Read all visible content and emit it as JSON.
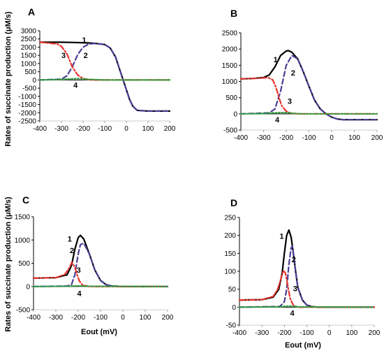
{
  "figure": {
    "ylabel": "Rates of succinate production (μM/s)",
    "xlabel_C": "Eout   (mV)",
    "xlabel_D": "Eout  (mV)"
  },
  "chart_data": [
    {
      "panel": "A",
      "type": "line",
      "title": "A",
      "xlim": [
        -400,
        200
      ],
      "xticks": [
        -400,
        -300,
        -200,
        -100,
        0,
        100,
        200
      ],
      "ylim": [
        -2500,
        3000
      ],
      "yticks": [
        -2500,
        -2000,
        -1500,
        -1000,
        -500,
        0,
        500,
        1000,
        1500,
        2000,
        2500,
        3000
      ],
      "series": [
        {
          "name": "1",
          "color": "#000000",
          "dash": "solid",
          "x": [
            -400,
            -300,
            -250,
            -200,
            -150,
            -100,
            -75,
            -50,
            -30,
            -15,
            0,
            15,
            30,
            50,
            100,
            200
          ],
          "y": [
            2300,
            2300,
            2290,
            2270,
            2240,
            2160,
            1950,
            1400,
            600,
            0,
            -600,
            -1200,
            -1600,
            -1850,
            -1900,
            -1900
          ]
        },
        {
          "name": "2",
          "color": "#4a3f95",
          "dash": "dashed",
          "x": [
            -400,
            -300,
            -275,
            -250,
            -225,
            -200,
            -175,
            -150,
            -100,
            -75,
            -50,
            -30,
            -15,
            0,
            15,
            30,
            50,
            100,
            200
          ],
          "y": [
            0,
            50,
            250,
            800,
            1550,
            2000,
            2180,
            2230,
            2160,
            1950,
            1400,
            600,
            0,
            -600,
            -1200,
            -1600,
            -1850,
            -1900,
            -1900
          ]
        },
        {
          "name": "3",
          "color": "#e8312a",
          "dash": "dashdot",
          "x": [
            -400,
            -320,
            -300,
            -275,
            -250,
            -225,
            -200,
            -175,
            -150,
            -100,
            200
          ],
          "y": [
            2300,
            2200,
            2050,
            1600,
            800,
            300,
            90,
            20,
            0,
            0,
            0
          ]
        },
        {
          "name": "4",
          "color": "#2e9e3e",
          "dash": "dotted",
          "x": [
            -400,
            -300,
            -250,
            -220,
            -180,
            -100,
            200
          ],
          "y": [
            0,
            30,
            70,
            80,
            40,
            0,
            0
          ]
        }
      ],
      "series_labels": [
        {
          "text": "1",
          "x": -195,
          "y": 2450
        },
        {
          "text": "2",
          "x": -188,
          "y": 1500
        },
        {
          "text": "3",
          "x": -290,
          "y": 1500
        },
        {
          "text": "4",
          "x": -235,
          "y": -300
        }
      ]
    },
    {
      "panel": "B",
      "type": "line",
      "title": "B",
      "xlim": [
        -400,
        200
      ],
      "xticks": [
        -400,
        -300,
        -200,
        -100,
        0,
        100,
        200
      ],
      "ylim": [
        -500,
        2500
      ],
      "yticks": [
        -500,
        0,
        500,
        1000,
        1500,
        2000,
        2500
      ],
      "series": [
        {
          "name": "1",
          "color": "#000000",
          "dash": "solid",
          "x": [
            -400,
            -350,
            -300,
            -275,
            -250,
            -225,
            -200,
            -190,
            -175,
            -150,
            -125,
            -100,
            -75,
            -50,
            -25,
            0,
            25,
            50,
            100,
            200
          ],
          "y": [
            1080,
            1090,
            1120,
            1200,
            1450,
            1800,
            1940,
            1950,
            1900,
            1700,
            1300,
            850,
            420,
            150,
            0,
            -100,
            -160,
            -180,
            -180,
            -180
          ]
        },
        {
          "name": "2",
          "color": "#4a3f95",
          "dash": "dashed",
          "x": [
            -400,
            -275,
            -250,
            -225,
            -200,
            -175,
            -150,
            -125,
            -100,
            -75,
            -50,
            -25,
            0,
            25,
            50,
            100,
            200
          ],
          "y": [
            0,
            30,
            150,
            700,
            1500,
            1800,
            1700,
            1300,
            850,
            420,
            150,
            0,
            -100,
            -160,
            -180,
            -180,
            -180
          ]
        },
        {
          "name": "3",
          "color": "#e8312a",
          "dash": "dashdot",
          "x": [
            -400,
            -320,
            -280,
            -260,
            -250,
            -240,
            -230,
            -220,
            -200,
            -180,
            -150,
            200
          ],
          "y": [
            1080,
            1100,
            1120,
            1050,
            900,
            700,
            450,
            250,
            80,
            20,
            0,
            0
          ]
        },
        {
          "name": "4",
          "color": "#2e9e3e",
          "dash": "dotted",
          "x": [
            -400,
            -300,
            -250,
            -220,
            -200,
            -170,
            -130,
            200
          ],
          "y": [
            0,
            10,
            30,
            40,
            35,
            15,
            0,
            0
          ]
        }
      ],
      "series_labels": [
        {
          "text": "1",
          "x": -247,
          "y": 1680
        },
        {
          "text": "2",
          "x": -170,
          "y": 1270
        },
        {
          "text": "3",
          "x": -185,
          "y": 400
        },
        {
          "text": "4",
          "x": -240,
          "y": -180
        }
      ]
    },
    {
      "panel": "C",
      "type": "line",
      "title": "C",
      "xlim": [
        -400,
        200
      ],
      "xticks": [
        -400,
        -300,
        -200,
        -100,
        0,
        100,
        200
      ],
      "ylim": [
        -500,
        1500
      ],
      "yticks": [
        -500,
        0,
        500,
        1000,
        1500
      ],
      "series": [
        {
          "name": "1",
          "color": "#000000",
          "dash": "solid",
          "x": [
            -400,
            -300,
            -250,
            -230,
            -215,
            -200,
            -190,
            -175,
            -150,
            -125,
            -100,
            -75,
            -50,
            0,
            200
          ],
          "y": [
            180,
            190,
            250,
            450,
            800,
            1050,
            1100,
            1020,
            700,
            350,
            130,
            40,
            10,
            0,
            0
          ]
        },
        {
          "name": "2",
          "color": "#4a3f95",
          "dash": "dashed",
          "x": [
            -400,
            -250,
            -230,
            -215,
            -200,
            -190,
            -175,
            -150,
            -125,
            -100,
            -75,
            -50,
            0,
            200
          ],
          "y": [
            0,
            10,
            40,
            250,
            700,
            900,
            930,
            700,
            350,
            130,
            40,
            10,
            0,
            0
          ]
        },
        {
          "name": "3",
          "color": "#e8312a",
          "dash": "dashdot",
          "x": [
            -400,
            -300,
            -260,
            -240,
            -228,
            -215,
            -205,
            -195,
            -180,
            -150,
            200
          ],
          "y": [
            180,
            190,
            260,
            400,
            520,
            420,
            250,
            120,
            30,
            0,
            0
          ]
        },
        {
          "name": "4",
          "color": "#2e9e3e",
          "dash": "dotted",
          "x": [
            -400,
            -250,
            -210,
            -190,
            -160,
            200
          ],
          "y": [
            0,
            5,
            15,
            15,
            5,
            0
          ]
        }
      ],
      "series_labels": [
        {
          "text": "1",
          "x": -238,
          "y": 1030
        },
        {
          "text": "2",
          "x": -228,
          "y": 780
        },
        {
          "text": "3",
          "x": -198,
          "y": 360
        },
        {
          "text": "4",
          "x": -195,
          "y": -150
        }
      ]
    },
    {
      "panel": "D",
      "type": "line",
      "title": "D",
      "xlim": [
        -400,
        200
      ],
      "xticks": [
        -400,
        -300,
        -200,
        -100,
        0,
        100,
        200
      ],
      "ylim": [
        -50,
        250
      ],
      "yticks": [
        -50,
        0,
        50,
        100,
        150,
        200,
        250
      ],
      "series": [
        {
          "name": "1",
          "color": "#000000",
          "dash": "solid",
          "x": [
            -400,
            -300,
            -250,
            -225,
            -210,
            -200,
            -190,
            -180,
            -170,
            -160,
            -150,
            -140,
            -120,
            -100,
            -80,
            -50,
            0,
            200
          ],
          "y": [
            20,
            21,
            28,
            50,
            95,
            150,
            200,
            215,
            195,
            150,
            100,
            55,
            20,
            6,
            2,
            0,
            0,
            0
          ]
        },
        {
          "name": "2",
          "color": "#4a3f95",
          "dash": "dashed",
          "x": [
            -400,
            -220,
            -200,
            -190,
            -180,
            -170,
            -165,
            -160,
            -150,
            -140,
            -120,
            -100,
            -80,
            -50,
            0,
            200
          ],
          "y": [
            0,
            2,
            15,
            50,
            120,
            165,
            170,
            150,
            100,
            55,
            20,
            6,
            2,
            0,
            0,
            0
          ]
        },
        {
          "name": "3",
          "color": "#e8312a",
          "dash": "dashdot",
          "x": [
            -400,
            -300,
            -250,
            -230,
            -215,
            -205,
            -195,
            -185,
            -175,
            -160,
            -140,
            200
          ],
          "y": [
            20,
            21,
            30,
            50,
            80,
            102,
            95,
            60,
            25,
            5,
            0,
            0
          ]
        },
        {
          "name": "4",
          "color": "#2e9e3e",
          "dash": "dotted",
          "x": [
            -400,
            -220,
            -190,
            -170,
            -140,
            200
          ],
          "y": [
            0,
            1,
            3,
            3,
            1,
            0
          ]
        }
      ],
      "series_labels": [
        {
          "text": "1",
          "x": -212,
          "y": 198
        },
        {
          "text": "2",
          "x": -158,
          "y": 133
        },
        {
          "text": "3",
          "x": -152,
          "y": 52
        },
        {
          "text": "4",
          "x": -165,
          "y": -16
        }
      ]
    }
  ]
}
